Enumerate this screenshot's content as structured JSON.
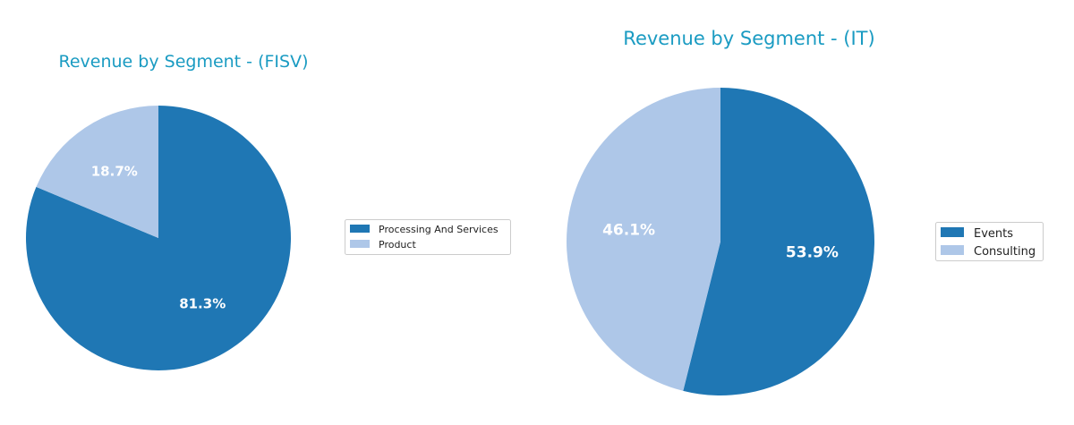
{
  "colors": {
    "title": "#1a9bc2",
    "label": "#ffffff",
    "primary_slice": "#1f77b4",
    "secondary_slice": "#aec7e8"
  },
  "chart_data": [
    {
      "type": "pie",
      "title": "Revenue by Segment - (FISV)",
      "start_angle_deg": 90,
      "direction": "clockwise",
      "legend_placement": "right",
      "slices": [
        {
          "name": "Processing And Services",
          "value": 81.3,
          "label": "81.3%",
          "color": "#1f77b4"
        },
        {
          "name": "Product",
          "value": 18.7,
          "label": "18.7%",
          "color": "#aec7e8"
        }
      ]
    },
    {
      "type": "pie",
      "title": "Revenue by Segment - (IT)",
      "start_angle_deg": 90,
      "direction": "clockwise",
      "legend_placement": "right",
      "slices": [
        {
          "name": "Events",
          "value": 53.9,
          "label": "53.9%",
          "color": "#1f77b4"
        },
        {
          "name": "Consulting",
          "value": 46.1,
          "label": "46.1%",
          "color": "#aec7e8"
        }
      ]
    }
  ]
}
